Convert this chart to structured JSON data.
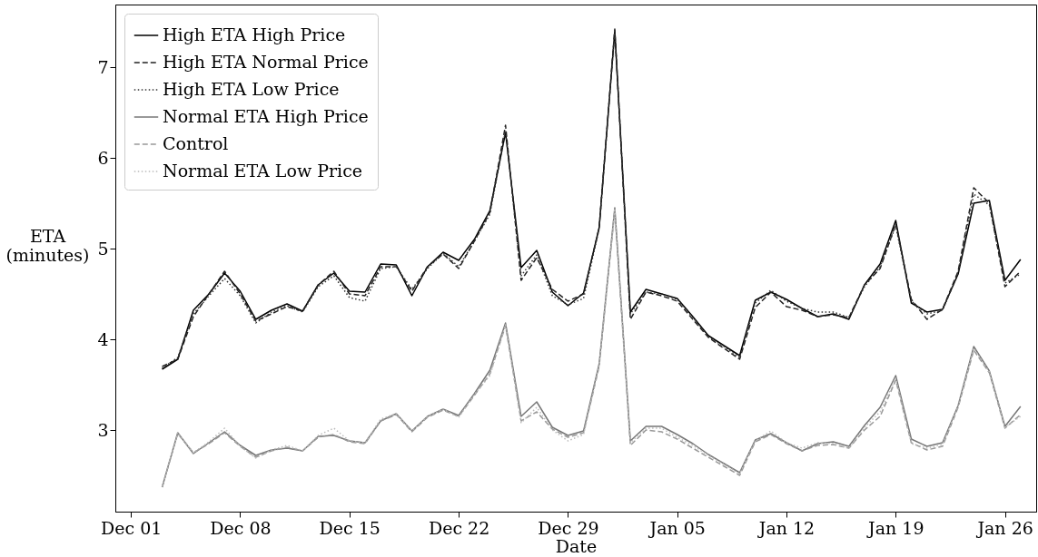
{
  "chart_data": {
    "type": "line",
    "xlabel": "Date",
    "ylabel": "ETA\n(minutes)",
    "legend": "top left",
    "grid": false,
    "marker": "none",
    "categories": [
      "Dec 01",
      null,
      null,
      null,
      null,
      null,
      null,
      "Dec 08",
      null,
      null,
      null,
      null,
      null,
      null,
      "Dec 15",
      null,
      null,
      null,
      null,
      null,
      null,
      "Dec 22",
      null,
      null,
      null,
      null,
      null,
      null,
      "Dec 29",
      null,
      null,
      null,
      null,
      null,
      null,
      "Jan 05",
      null,
      null,
      null,
      null,
      null,
      null,
      "Jan 12",
      null,
      null,
      null,
      null,
      null,
      null,
      "Jan 19",
      null,
      null,
      null,
      null,
      null,
      null,
      "Jan 26",
      null
    ],
    "ylim": [
      2.1,
      7.69
    ],
    "yticks": [
      3,
      4,
      5,
      6,
      7
    ],
    "series": [
      {
        "name": "High ETA High Price",
        "color": "#000000",
        "line_style": "solid",
        "values": [
          null,
          null,
          3.67,
          3.78,
          4.32,
          4.5,
          4.73,
          4.53,
          4.22,
          4.32,
          4.39,
          4.31,
          4.6,
          4.73,
          4.53,
          4.52,
          4.83,
          4.82,
          4.48,
          4.8,
          4.96,
          4.87,
          5.1,
          5.42,
          6.28,
          4.79,
          4.98,
          4.52,
          4.37,
          4.51,
          5.23,
          7.4,
          4.3,
          4.55,
          4.5,
          4.45,
          4.25,
          4.04,
          3.93,
          3.82,
          4.43,
          4.52,
          4.44,
          4.34,
          4.25,
          4.28,
          4.22,
          4.6,
          4.83,
          5.31,
          4.4,
          4.3,
          4.33,
          4.72,
          5.5,
          5.53,
          4.65,
          4.88
        ]
      },
      {
        "name": "High ETA Normal Price",
        "color": "#222222",
        "line_style": "dashed",
        "values": [
          null,
          null,
          3.7,
          3.78,
          4.25,
          4.5,
          4.75,
          4.5,
          4.2,
          4.28,
          4.36,
          4.31,
          4.6,
          4.75,
          4.5,
          4.48,
          4.8,
          4.8,
          4.53,
          4.8,
          4.94,
          4.78,
          5.08,
          5.4,
          6.36,
          4.65,
          4.9,
          4.55,
          4.42,
          4.5,
          5.23,
          7.42,
          4.22,
          4.52,
          4.48,
          4.42,
          4.22,
          4.02,
          3.9,
          3.78,
          4.35,
          4.52,
          4.36,
          4.32,
          4.25,
          4.27,
          4.24,
          4.6,
          4.78,
          5.27,
          4.44,
          4.22,
          4.33,
          4.75,
          5.67,
          5.5,
          4.58,
          4.75
        ]
      },
      {
        "name": "High ETA Low Price",
        "color": "#333333",
        "line_style": "dotted",
        "values": [
          null,
          null,
          3.68,
          3.8,
          4.28,
          4.48,
          4.67,
          4.48,
          4.18,
          4.3,
          4.37,
          4.3,
          4.58,
          4.7,
          4.46,
          4.42,
          4.78,
          4.8,
          4.55,
          4.78,
          4.95,
          4.8,
          5.08,
          5.38,
          6.3,
          4.7,
          4.93,
          4.48,
          4.38,
          4.45,
          5.22,
          7.4,
          4.28,
          4.52,
          4.5,
          4.44,
          4.24,
          4.03,
          3.92,
          3.8,
          4.4,
          4.54,
          4.42,
          4.34,
          4.3,
          4.3,
          4.24,
          4.58,
          4.8,
          5.25,
          4.42,
          4.28,
          4.32,
          4.73,
          5.6,
          5.48,
          4.62,
          4.72
        ]
      },
      {
        "name": "Normal ETA High Price",
        "color": "#777777",
        "line_style": "solid",
        "values": [
          null,
          null,
          2.37,
          2.97,
          2.74,
          2.86,
          2.98,
          2.83,
          2.72,
          2.78,
          2.8,
          2.77,
          2.93,
          2.94,
          2.88,
          2.86,
          3.1,
          3.18,
          2.99,
          3.15,
          3.23,
          3.16,
          3.4,
          3.66,
          4.18,
          3.15,
          3.31,
          3.03,
          2.94,
          2.99,
          3.73,
          5.45,
          2.88,
          3.04,
          3.04,
          2.95,
          2.85,
          2.73,
          2.63,
          2.53,
          2.89,
          2.96,
          2.86,
          2.77,
          2.85,
          2.87,
          2.82,
          3.05,
          3.25,
          3.6,
          2.9,
          2.82,
          2.86,
          3.27,
          3.92,
          3.65,
          3.04,
          3.26
        ]
      },
      {
        "name": "Control",
        "color": "#999999",
        "line_style": "dashed",
        "values": [
          null,
          null,
          2.37,
          2.96,
          2.75,
          2.85,
          2.97,
          2.82,
          2.7,
          2.77,
          2.81,
          2.77,
          2.92,
          2.95,
          2.87,
          2.85,
          3.1,
          3.17,
          2.98,
          3.14,
          3.22,
          3.15,
          3.38,
          3.62,
          4.15,
          3.1,
          3.2,
          3.01,
          2.92,
          2.97,
          3.7,
          5.42,
          2.83,
          3.0,
          2.98,
          2.9,
          2.8,
          2.7,
          2.6,
          2.5,
          2.87,
          2.95,
          2.85,
          2.77,
          2.83,
          2.84,
          2.8,
          3.0,
          3.15,
          3.55,
          2.86,
          2.78,
          2.82,
          3.25,
          3.88,
          3.63,
          3.02,
          3.17
        ]
      },
      {
        "name": "Normal ETA Low Price",
        "color": "#bbbbbb",
        "line_style": "dotted",
        "values": [
          null,
          null,
          2.38,
          2.97,
          2.75,
          2.87,
          3.02,
          2.82,
          2.69,
          2.78,
          2.83,
          2.77,
          2.94,
          3.02,
          2.88,
          2.86,
          3.12,
          3.18,
          2.99,
          3.15,
          3.23,
          3.14,
          3.39,
          3.6,
          4.16,
          3.08,
          3.25,
          3.0,
          2.88,
          2.95,
          3.71,
          5.44,
          2.86,
          3.02,
          3.02,
          2.92,
          2.83,
          2.72,
          2.62,
          2.52,
          2.88,
          2.99,
          2.86,
          2.8,
          2.86,
          2.85,
          2.8,
          3.03,
          3.2,
          3.57,
          2.85,
          2.8,
          2.84,
          3.26,
          3.9,
          3.64,
          3.03,
          3.15
        ]
      }
    ]
  }
}
